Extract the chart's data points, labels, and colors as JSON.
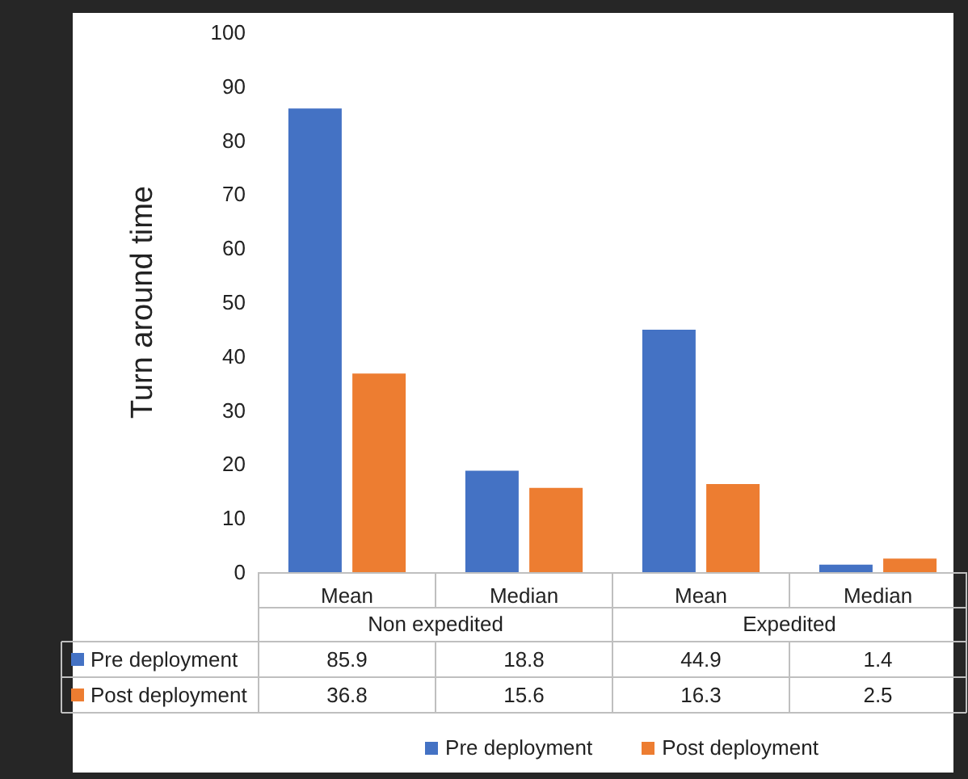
{
  "chart_data": {
    "type": "bar",
    "ylabel": "Turn around time",
    "categories": [
      "Mean",
      "Median",
      "Mean",
      "Median"
    ],
    "annotations": [
      "Non expedited",
      "Expedited"
    ],
    "series": [
      {
        "name": "Pre deployment",
        "color": "#4472c4",
        "values": [
          85.9,
          18.8,
          44.9,
          1.4
        ]
      },
      {
        "name": "Post deployment",
        "color": "#ed7d31",
        "values": [
          36.8,
          15.6,
          16.3,
          2.5
        ]
      }
    ],
    "ylim": [
      0,
      100
    ],
    "yticks": [
      0,
      10,
      20,
      30,
      40,
      50,
      60,
      70,
      80,
      90,
      100
    ],
    "grid": false,
    "legend": "bottom",
    "data_labels": true
  }
}
